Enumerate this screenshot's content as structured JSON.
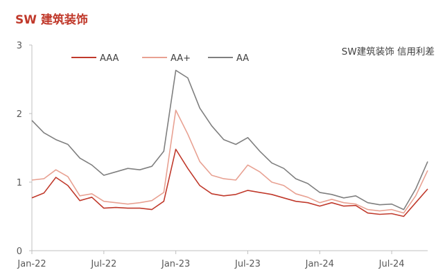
{
  "header": {
    "title": "SW 建筑装饰"
  },
  "chart_data": {
    "type": "line",
    "title": "SW 建筑装饰",
    "annotation": "SW建筑装饰 信用利差",
    "xlabel": "",
    "ylabel": "",
    "ylim": [
      0,
      3
    ],
    "yticks": [
      "0",
      "1",
      "2",
      "3"
    ],
    "xticks": [
      "Jan-22",
      "Jul-22",
      "Jan-23",
      "Jul-23",
      "Jan-24",
      "Jul-24"
    ],
    "grid": false,
    "legend": "top",
    "x": [
      "2022-01",
      "2022-02",
      "2022-03",
      "2022-04",
      "2022-05",
      "2022-06",
      "2022-07",
      "2022-08",
      "2022-09",
      "2022-10",
      "2022-11",
      "2022-12",
      "2023-01",
      "2023-02",
      "2023-03",
      "2023-04",
      "2023-05",
      "2023-06",
      "2023-07",
      "2023-08",
      "2023-09",
      "2023-10",
      "2023-11",
      "2023-12",
      "2024-01",
      "2024-02",
      "2024-03",
      "2024-04",
      "2024-05",
      "2024-06",
      "2024-07",
      "2024-08",
      "2024-09",
      "2024-10"
    ],
    "series": [
      {
        "name": "AAA",
        "color": "#C0392B",
        "values": [
          0.77,
          0.84,
          1.07,
          0.95,
          0.73,
          0.78,
          0.62,
          0.63,
          0.62,
          0.62,
          0.6,
          0.72,
          1.48,
          1.2,
          0.95,
          0.83,
          0.8,
          0.82,
          0.88,
          0.85,
          0.82,
          0.77,
          0.72,
          0.7,
          0.65,
          0.7,
          0.65,
          0.66,
          0.55,
          0.53,
          0.54,
          0.5,
          0.7,
          0.9
        ]
      },
      {
        "name": "AA+",
        "color": "#E8A192",
        "values": [
          1.03,
          1.05,
          1.18,
          1.08,
          0.8,
          0.83,
          0.72,
          0.7,
          0.68,
          0.7,
          0.73,
          0.85,
          2.05,
          1.7,
          1.3,
          1.1,
          1.05,
          1.03,
          1.25,
          1.15,
          1.0,
          0.95,
          0.83,
          0.78,
          0.7,
          0.75,
          0.7,
          0.68,
          0.6,
          0.58,
          0.6,
          0.55,
          0.8,
          1.17
        ]
      },
      {
        "name": "AA",
        "color": "#7F7F7F",
        "values": [
          1.9,
          1.72,
          1.62,
          1.55,
          1.35,
          1.25,
          1.1,
          1.15,
          1.2,
          1.18,
          1.23,
          1.45,
          2.63,
          2.52,
          2.08,
          1.82,
          1.62,
          1.55,
          1.65,
          1.45,
          1.28,
          1.2,
          1.05,
          0.98,
          0.85,
          0.82,
          0.77,
          0.8,
          0.7,
          0.67,
          0.68,
          0.6,
          0.9,
          1.3
        ]
      }
    ]
  }
}
